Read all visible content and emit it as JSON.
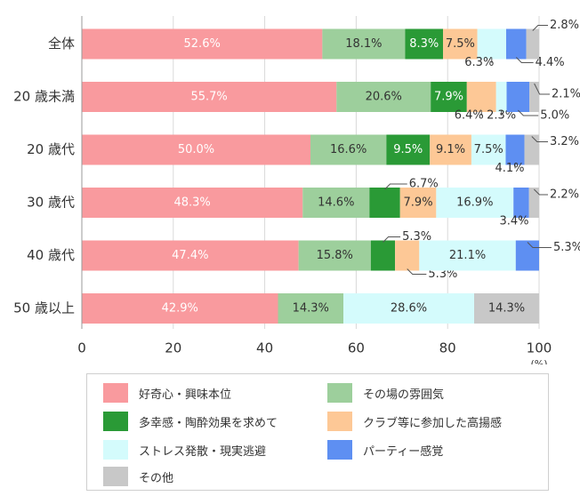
{
  "chart_data": {
    "type": "bar",
    "orientation": "horizontal",
    "stacked": true,
    "categories": [
      "全体",
      "20 歳未満",
      "20 歳代",
      "30 歳代",
      "40 歳代",
      "50 歳以上"
    ],
    "series": [
      {
        "name": "好奇心・興味本位",
        "color": "#f99a9e",
        "values": [
          52.6,
          55.7,
          50.0,
          48.3,
          47.4,
          42.9
        ]
      },
      {
        "name": "その場の雰囲気",
        "color": "#9dcf9c",
        "values": [
          18.1,
          20.6,
          16.6,
          14.6,
          15.8,
          14.3
        ]
      },
      {
        "name": "多幸感・陶酔効果を求めて",
        "color": "#2a9a36",
        "values": [
          8.3,
          7.9,
          9.5,
          6.7,
          5.3,
          0
        ]
      },
      {
        "name": "クラブ等に参加した高揚感",
        "color": "#fdc896",
        "values": [
          7.5,
          6.4,
          9.1,
          7.9,
          5.3,
          0
        ]
      },
      {
        "name": "ストレス発散・現実逃避",
        "color": "#d4fbfc",
        "values": [
          6.3,
          2.3,
          7.5,
          16.9,
          21.1,
          28.6
        ]
      },
      {
        "name": "パーティー感覚",
        "color": "#5e8ff2",
        "values": [
          4.4,
          5.0,
          4.1,
          3.4,
          5.3,
          0
        ]
      },
      {
        "name": "その他",
        "color": "#c8c8c8",
        "values": [
          2.8,
          2.1,
          3.2,
          2.2,
          0,
          14.3
        ]
      }
    ],
    "labels": [
      [
        "52.6%",
        "18.1%",
        "8.3%",
        "7.5%",
        "6.3%",
        "4.4%",
        "2.8%"
      ],
      [
        "55.7%",
        "20.6%",
        "7.9%",
        "6.4%",
        "2.3%",
        "5.0%",
        "2.1%"
      ],
      [
        "50.0%",
        "16.6%",
        "9.5%",
        "9.1%",
        "7.5%",
        "4.1%",
        "3.2%"
      ],
      [
        "48.3%",
        "14.6%",
        "6.7%",
        "7.9%",
        "16.9%",
        "3.4%",
        "2.2%"
      ],
      [
        "47.4%",
        "15.8%",
        "5.3%",
        "5.3%",
        "21.1%",
        "5.3%",
        ""
      ],
      [
        "42.9%",
        "14.3%",
        "",
        "",
        "28.6%",
        "",
        "14.3%"
      ]
    ],
    "xlim": [
      0,
      100
    ],
    "xticks": [
      "0",
      "20",
      "40",
      "60",
      "80",
      "100"
    ],
    "unit_label": "(%)",
    "grid": true,
    "legend_position": "bottom"
  }
}
